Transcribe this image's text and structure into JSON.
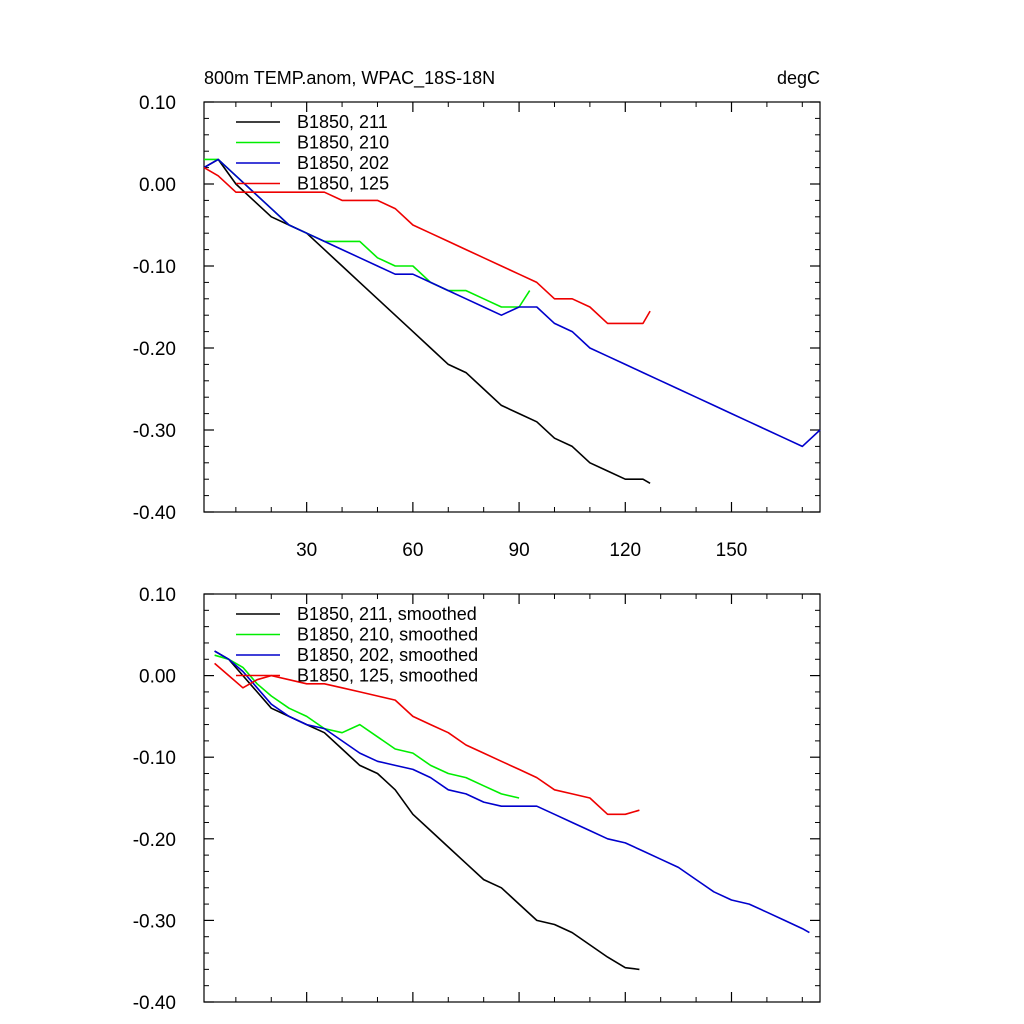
{
  "chart_data": [
    {
      "type": "line",
      "title": "800m TEMP.anom, WPAC_18S-18N",
      "units": "degC",
      "xlim": [
        1,
        175
      ],
      "ylim": [
        -0.4,
        0.1
      ],
      "yticks": [
        "0.10",
        "0.00",
        "-0.10",
        "-0.20",
        "-0.30",
        "-0.40"
      ],
      "xticks": [
        "30",
        "60",
        "90",
        "120",
        "150"
      ],
      "legend_position": "top-left",
      "series": [
        {
          "name": "B1850, 211",
          "color": "#000000",
          "x": [
            1,
            5,
            10,
            15,
            20,
            25,
            30,
            35,
            40,
            45,
            50,
            55,
            60,
            65,
            70,
            75,
            80,
            85,
            90,
            95,
            100,
            105,
            110,
            115,
            120,
            125,
            127
          ],
          "y": [
            0.02,
            0.03,
            0.0,
            -0.02,
            -0.04,
            -0.05,
            -0.06,
            -0.08,
            -0.1,
            -0.12,
            -0.14,
            -0.16,
            -0.18,
            -0.2,
            -0.22,
            -0.23,
            -0.25,
            -0.27,
            -0.28,
            -0.29,
            -0.31,
            -0.32,
            -0.34,
            -0.35,
            -0.36,
            -0.36,
            -0.365
          ]
        },
        {
          "name": "B1850, 210",
          "color": "#00ee00",
          "x": [
            1,
            5,
            10,
            15,
            20,
            25,
            30,
            35,
            40,
            45,
            50,
            55,
            60,
            65,
            70,
            75,
            80,
            85,
            90,
            93
          ],
          "y": [
            0.03,
            0.03,
            0.01,
            -0.01,
            -0.03,
            -0.05,
            -0.06,
            -0.07,
            -0.07,
            -0.07,
            -0.09,
            -0.1,
            -0.1,
            -0.12,
            -0.13,
            -0.13,
            -0.14,
            -0.15,
            -0.15,
            -0.13
          ]
        },
        {
          "name": "B1850, 202",
          "color": "#0000cc",
          "x": [
            1,
            5,
            10,
            15,
            20,
            25,
            30,
            35,
            40,
            45,
            50,
            55,
            60,
            65,
            70,
            75,
            80,
            85,
            90,
            95,
            100,
            105,
            110,
            115,
            120,
            125,
            130,
            135,
            140,
            145,
            150,
            155,
            160,
            165,
            170,
            175
          ],
          "y": [
            0.02,
            0.03,
            0.01,
            -0.01,
            -0.03,
            -0.05,
            -0.06,
            -0.07,
            -0.08,
            -0.09,
            -0.1,
            -0.11,
            -0.11,
            -0.12,
            -0.13,
            -0.14,
            -0.15,
            -0.16,
            -0.15,
            -0.15,
            -0.17,
            -0.18,
            -0.2,
            -0.21,
            -0.22,
            -0.23,
            -0.24,
            -0.25,
            -0.26,
            -0.27,
            -0.28,
            -0.29,
            -0.3,
            -0.31,
            -0.32,
            -0.3
          ]
        },
        {
          "name": "B1850, 125",
          "color": "#ee0000",
          "x": [
            1,
            5,
            10,
            15,
            20,
            25,
            30,
            35,
            40,
            45,
            50,
            55,
            60,
            65,
            70,
            75,
            80,
            85,
            90,
            95,
            100,
            105,
            110,
            115,
            120,
            125,
            127
          ],
          "y": [
            0.02,
            0.01,
            -0.01,
            -0.01,
            -0.01,
            -0.01,
            -0.01,
            -0.01,
            -0.02,
            -0.02,
            -0.02,
            -0.03,
            -0.05,
            -0.06,
            -0.07,
            -0.08,
            -0.09,
            -0.1,
            -0.11,
            -0.12,
            -0.14,
            -0.14,
            -0.15,
            -0.17,
            -0.17,
            -0.17,
            -0.155
          ]
        }
      ]
    },
    {
      "type": "line",
      "xlim": [
        1,
        175
      ],
      "ylim": [
        -0.4,
        0.1
      ],
      "yticks": [
        "0.10",
        "0.00",
        "-0.10",
        "-0.20",
        "-0.30",
        "-0.40"
      ],
      "legend_position": "top-left",
      "series": [
        {
          "name": "B1850, 211, smoothed",
          "color": "#000000",
          "x": [
            4,
            8,
            12,
            16,
            20,
            25,
            30,
            35,
            40,
            45,
            50,
            55,
            60,
            65,
            70,
            75,
            80,
            85,
            90,
            95,
            100,
            105,
            110,
            115,
            120,
            124
          ],
          "y": [
            0.03,
            0.02,
            0.0,
            -0.02,
            -0.04,
            -0.05,
            -0.06,
            -0.07,
            -0.09,
            -0.11,
            -0.12,
            -0.14,
            -0.17,
            -0.19,
            -0.21,
            -0.23,
            -0.25,
            -0.26,
            -0.28,
            -0.3,
            -0.305,
            -0.315,
            -0.33,
            -0.345,
            -0.358,
            -0.36
          ]
        },
        {
          "name": "B1850, 210, smoothed",
          "color": "#00ee00",
          "x": [
            4,
            8,
            12,
            16,
            20,
            25,
            30,
            35,
            40,
            45,
            50,
            55,
            60,
            65,
            70,
            75,
            80,
            85,
            90
          ],
          "y": [
            0.025,
            0.02,
            0.01,
            -0.01,
            -0.025,
            -0.04,
            -0.05,
            -0.065,
            -0.07,
            -0.06,
            -0.075,
            -0.09,
            -0.095,
            -0.11,
            -0.12,
            -0.125,
            -0.135,
            -0.145,
            -0.15
          ]
        },
        {
          "name": "B1850, 202, smoothed",
          "color": "#0000cc",
          "x": [
            4,
            8,
            12,
            16,
            20,
            25,
            30,
            35,
            40,
            45,
            50,
            55,
            60,
            65,
            70,
            75,
            80,
            85,
            90,
            95,
            100,
            105,
            110,
            115,
            120,
            125,
            130,
            135,
            140,
            145,
            150,
            155,
            160,
            165,
            170,
            172
          ],
          "y": [
            0.03,
            0.02,
            0.005,
            -0.015,
            -0.035,
            -0.05,
            -0.06,
            -0.065,
            -0.08,
            -0.095,
            -0.105,
            -0.11,
            -0.115,
            -0.125,
            -0.14,
            -0.145,
            -0.155,
            -0.16,
            -0.16,
            -0.16,
            -0.17,
            -0.18,
            -0.19,
            -0.2,
            -0.205,
            -0.215,
            -0.225,
            -0.235,
            -0.25,
            -0.265,
            -0.275,
            -0.28,
            -0.29,
            -0.3,
            -0.31,
            -0.315
          ]
        },
        {
          "name": "B1850, 125, smoothed",
          "color": "#ee0000",
          "x": [
            4,
            8,
            12,
            16,
            20,
            25,
            30,
            35,
            40,
            45,
            50,
            55,
            60,
            65,
            70,
            75,
            80,
            85,
            90,
            95,
            100,
            105,
            110,
            115,
            120,
            124
          ],
          "y": [
            0.015,
            0.0,
            -0.015,
            -0.005,
            0.0,
            -0.005,
            -0.01,
            -0.01,
            -0.015,
            -0.02,
            -0.025,
            -0.03,
            -0.05,
            -0.06,
            -0.07,
            -0.085,
            -0.095,
            -0.105,
            -0.115,
            -0.125,
            -0.14,
            -0.145,
            -0.15,
            -0.17,
            -0.17,
            -0.165
          ]
        }
      ]
    }
  ]
}
